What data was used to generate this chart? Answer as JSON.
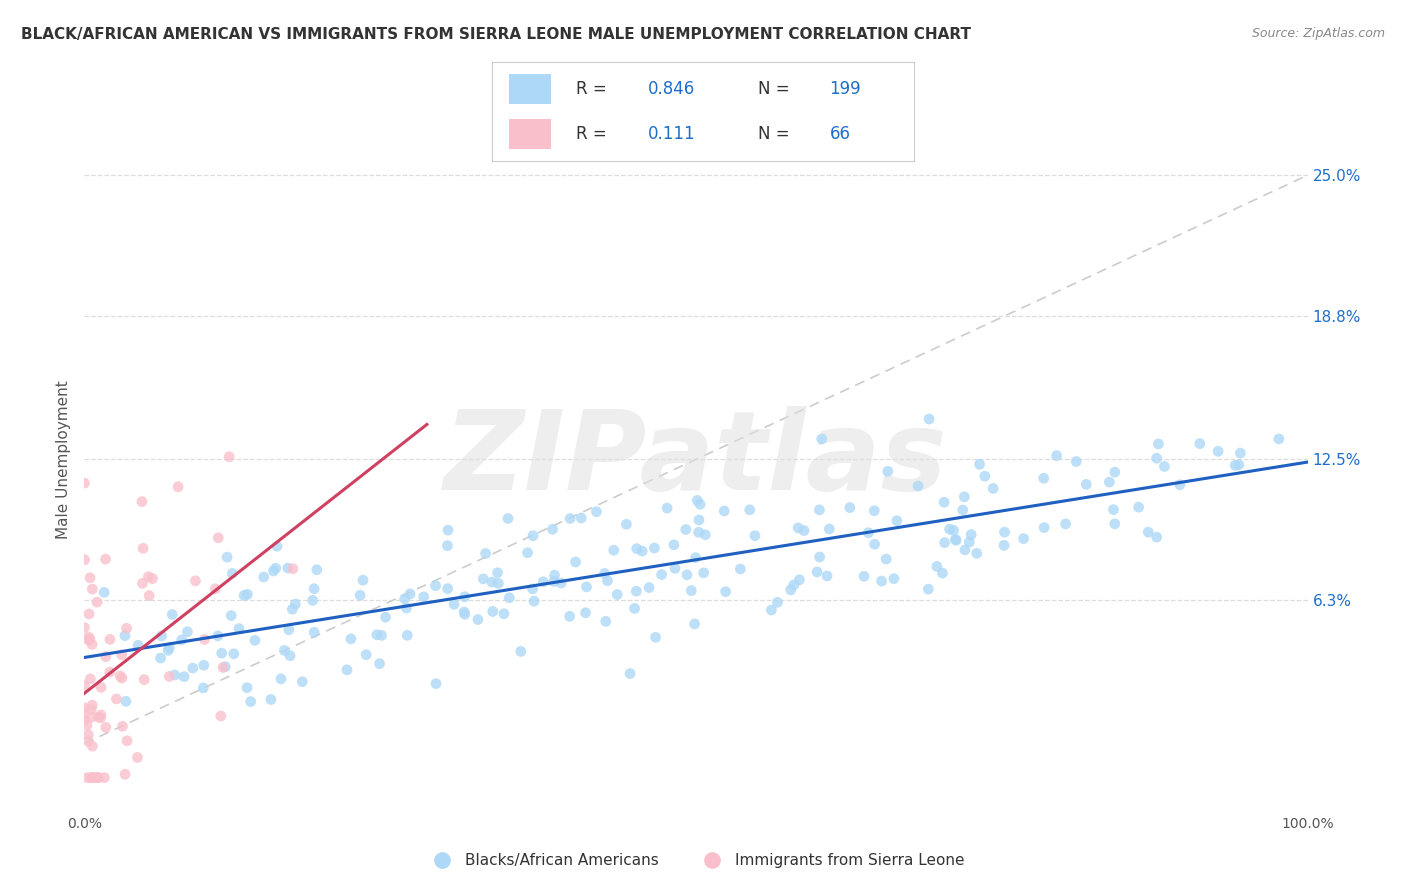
{
  "title": "BLACK/AFRICAN AMERICAN VS IMMIGRANTS FROM SIERRA LEONE MALE UNEMPLOYMENT CORRELATION CHART",
  "source": "Source: ZipAtlas.com",
  "ylabel_ticks": [
    0.063,
    0.125,
    0.188,
    0.25
  ],
  "ylabel_labels": [
    "6.3%",
    "12.5%",
    "18.8%",
    "25.0%"
  ],
  "ylabel_label": "Male Unemployment",
  "blue_R": 0.846,
  "blue_N": 199,
  "pink_R": 0.111,
  "pink_N": 66,
  "blue_scatter_color": "#ADD8F7",
  "pink_scatter_color": "#F9C0CB",
  "blue_line_color": "#2060C0",
  "pink_line_color": "#D04060",
  "blue_label": "Blacks/African Americans",
  "pink_label": "Immigrants from Sierra Leone",
  "watermark_text": "ZIPatlas",
  "xlim": [
    0.0,
    1.0
  ],
  "ylim": [
    -0.03,
    0.28
  ],
  "legend_R_N_color": "#1E6FCC",
  "legend_R_equals_color": "#333333",
  "grid_color": "#DDDDDD",
  "diag_color": "#CCCCCC",
  "title_color": "#333333",
  "source_color": "#888888",
  "tick_color": "#555555"
}
